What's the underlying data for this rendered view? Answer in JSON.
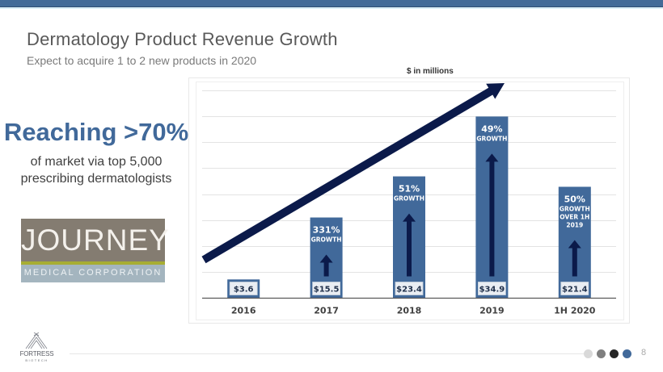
{
  "header": {
    "title": "Dermatology Product Revenue Growth",
    "subtitle": "Expect to acquire 1 to 2 new products in 2020"
  },
  "callout": {
    "headline": "Reaching >70%",
    "line1": "of market via top 5,000",
    "line2": "prescribing dermatologists"
  },
  "logo": {
    "name": "JOURNEY",
    "sub": "MEDICAL CORPORATION"
  },
  "footer": {
    "company": "FORTRESS",
    "company_sub": "BIOTECH",
    "page_number": "8",
    "nav_dots": [
      {
        "color": "#d9d9d9",
        "active": false
      },
      {
        "color": "#7f7f7f",
        "active": false
      },
      {
        "color": "#262626",
        "active": false
      },
      {
        "color": "#41699a",
        "active": true
      }
    ]
  },
  "colors": {
    "brand": "#436b98",
    "bar": "#41699a",
    "arrow": "#0b1a4a",
    "label_box": "#e9edf3"
  },
  "chart_data": {
    "type": "bar",
    "title": "",
    "units_note": "$ in millions",
    "xlabel": "",
    "ylabel": "",
    "categories": [
      "2016",
      "2017",
      "2018",
      "2019",
      "1H 2020"
    ],
    "values": [
      3.6,
      15.5,
      23.4,
      34.9,
      21.4
    ],
    "value_labels": [
      "$3.6",
      "$15.5",
      "$23.4",
      "$34.9",
      "$21.4"
    ],
    "annotations": [
      null,
      {
        "pct": "331%",
        "lines": [
          "GROWTH"
        ]
      },
      {
        "pct": "51%",
        "lines": [
          "GROWTH"
        ]
      },
      {
        "pct": "49%",
        "lines": [
          "GROWTH"
        ]
      },
      {
        "pct": "50%",
        "lines": [
          "GROWTH",
          "OVER 1H",
          "2019"
        ]
      }
    ],
    "ylim": [
      0,
      40
    ],
    "grid": true,
    "legend": "none",
    "trend_arrow": "increasing"
  }
}
